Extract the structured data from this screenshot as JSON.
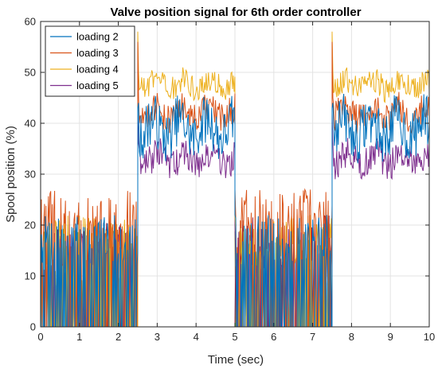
{
  "chart_data": {
    "type": "line",
    "title": "Valve position signal for 6th order controller",
    "xlabel": "Time (sec)",
    "ylabel": "Spool position (%)",
    "xlim": [
      0,
      10
    ],
    "ylim": [
      0,
      60
    ],
    "xticks": [
      0,
      1,
      2,
      3,
      4,
      5,
      6,
      7,
      8,
      9,
      10
    ],
    "yticks": [
      0,
      10,
      20,
      30,
      40,
      50,
      60
    ],
    "grid": true,
    "legend_position": "top-left",
    "segments": [
      {
        "start": 0.0,
        "end": 2.5,
        "phase": "low"
      },
      {
        "start": 2.5,
        "end": 5.0,
        "phase": "high"
      },
      {
        "start": 5.0,
        "end": 7.5,
        "phase": "low"
      },
      {
        "start": 7.5,
        "end": 10.0,
        "phase": "high"
      }
    ],
    "series": [
      {
        "name": "loading 2",
        "color": "#0072BD",
        "low_peak": 22,
        "high_mean": 39,
        "high_spread": 5,
        "spike": 43
      },
      {
        "name": "loading 3",
        "color": "#D95319",
        "low_peak": 27,
        "high_mean": 42,
        "high_spread": 3,
        "spike": 56
      },
      {
        "name": "loading 4",
        "color": "#EDB120",
        "low_peak": 22,
        "high_mean": 47.5,
        "high_spread": 2.5,
        "spike": 58
      },
      {
        "name": "loading 5",
        "color": "#7E2F8E",
        "low_peak": 20,
        "high_mean": 33,
        "high_spread": 3,
        "spike": 42
      }
    ],
    "extra_traces": [
      {
        "color": "#77AC30",
        "low_peak": 20
      },
      {
        "color": "#4DBEEE",
        "low_peak": 20
      },
      {
        "color": "#A2142F",
        "low_peak": 22
      }
    ]
  }
}
